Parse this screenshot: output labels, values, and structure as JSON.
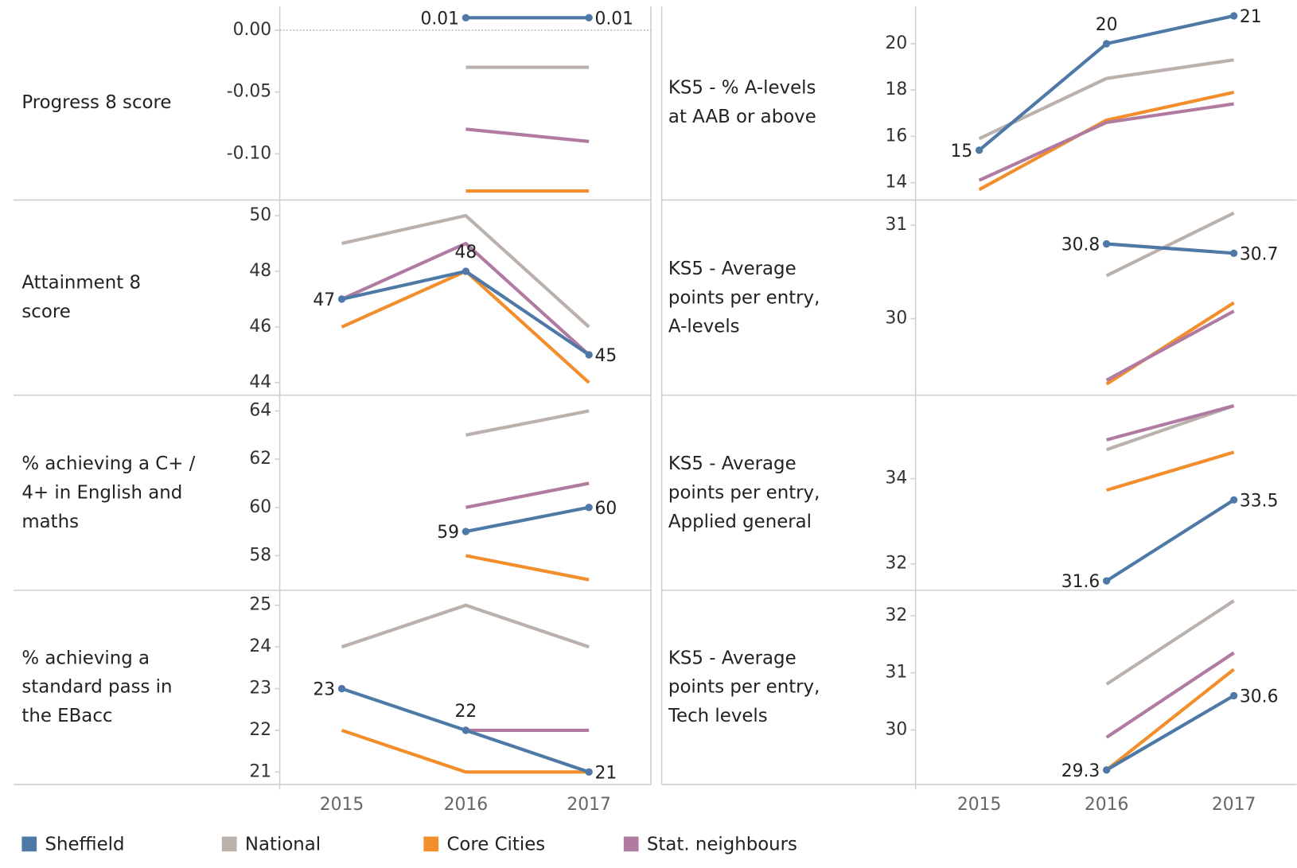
{
  "chart_data": [
    {
      "type": "line",
      "title": "Progress 8 score",
      "categories": [
        "2015",
        "2016",
        "2017"
      ],
      "ylim": [
        -0.136,
        0.019
      ],
      "yticks": [
        {
          "value": 0,
          "label": "0.00"
        },
        {
          "value": -0.05,
          "label": "-0.05"
        },
        {
          "value": -0.1,
          "label": "-0.10"
        }
      ],
      "zero_line": true,
      "series": [
        {
          "name": "Sheffield",
          "color": "#4e79a7",
          "values": [
            null,
            0.01,
            0.01
          ]
        },
        {
          "name": "National",
          "color": "#bab0ac",
          "values": [
            null,
            -0.03,
            -0.03
          ]
        },
        {
          "name": "Core Cities",
          "color": "#f28e2b",
          "values": [
            null,
            -0.13,
            -0.13
          ]
        },
        {
          "name": "Stat. neighbours",
          "color": "#b07aa1",
          "values": [
            null,
            -0.08,
            -0.09
          ]
        }
      ]
    },
    {
      "type": "line",
      "title": "Attainment 8\nscore",
      "categories": [
        "2015",
        "2016",
        "2017"
      ],
      "ylim": [
        43.58,
        50.53
      ],
      "yticks": [
        44,
        46,
        48,
        50
      ],
      "series": [
        {
          "name": "Sheffield",
          "color": "#4e79a7",
          "values": [
            47,
            48,
            45
          ]
        },
        {
          "name": "National",
          "color": "#bab0ac",
          "values": [
            49,
            50,
            46
          ]
        },
        {
          "name": "Core Cities",
          "color": "#f28e2b",
          "values": [
            46,
            48,
            44
          ]
        },
        {
          "name": "Stat. neighbours",
          "color": "#b07aa1",
          "values": [
            47,
            49,
            45
          ]
        }
      ]
    },
    {
      "type": "line",
      "title": "% achieving a C+ /\n4+ in English and\nmaths",
      "categories": [
        "2015",
        "2016",
        "2017"
      ],
      "ylim": [
        56.6,
        64.62
      ],
      "yticks": [
        58,
        60,
        62,
        64
      ],
      "series": [
        {
          "name": "Sheffield",
          "color": "#4e79a7",
          "values": [
            null,
            59,
            60
          ]
        },
        {
          "name": "National",
          "color": "#bab0ac",
          "values": [
            null,
            63,
            64
          ]
        },
        {
          "name": "Core Cities",
          "color": "#f28e2b",
          "values": [
            null,
            58,
            57
          ]
        },
        {
          "name": "Stat. neighbours",
          "color": "#b07aa1",
          "values": [
            null,
            60,
            61
          ]
        }
      ]
    },
    {
      "type": "line",
      "title": "% achieving a\nstandard pass in\nthe EBacc",
      "categories": [
        "2015",
        "2016",
        "2017"
      ],
      "ylim": [
        20.72,
        25.34
      ],
      "yticks": [
        21,
        22,
        23,
        24,
        25
      ],
      "series": [
        {
          "name": "Sheffield",
          "color": "#4e79a7",
          "values": [
            23,
            22,
            21
          ]
        },
        {
          "name": "National",
          "color": "#bab0ac",
          "values": [
            24,
            25,
            24
          ]
        },
        {
          "name": "Core Cities",
          "color": "#f28e2b",
          "values": [
            22,
            21,
            21
          ]
        },
        {
          "name": "Stat. neighbours",
          "color": "#b07aa1",
          "values": [
            null,
            22,
            22
          ]
        }
      ]
    },
    {
      "type": "line",
      "title": "KS5 - % A-levels\nat AAB or above",
      "categories": [
        "2015",
        "2016",
        "2017"
      ],
      "ylim": [
        13.32,
        21.6
      ],
      "yticks": [
        14,
        16,
        18,
        20
      ],
      "series": [
        {
          "name": "Sheffield",
          "color": "#4e79a7",
          "values": [
            15.4,
            20,
            21.2
          ],
          "value_labels": [
            "15",
            "20",
            "21"
          ]
        },
        {
          "name": "National",
          "color": "#bab0ac",
          "values": [
            15.9,
            18.5,
            19.3
          ]
        },
        {
          "name": "Core Cities",
          "color": "#f28e2b",
          "values": [
            13.7,
            16.7,
            17.9
          ]
        },
        {
          "name": "Stat. neighbours",
          "color": "#b07aa1",
          "values": [
            14.1,
            16.6,
            17.4
          ]
        }
      ]
    },
    {
      "type": "line",
      "title": "KS5 - Average\npoints per entry,\nA-levels",
      "categories": [
        "2015",
        "2016",
        "2017"
      ],
      "ylim": [
        29.19,
        31.26
      ],
      "yticks": [
        30,
        31
      ],
      "series": [
        {
          "name": "Sheffield",
          "color": "#4e79a7",
          "values": [
            null,
            30.8,
            30.7
          ]
        },
        {
          "name": "National",
          "color": "#bab0ac",
          "values": [
            null,
            30.46,
            31.13
          ]
        },
        {
          "name": "Core Cities",
          "color": "#f28e2b",
          "values": [
            null,
            29.3,
            30.17
          ]
        },
        {
          "name": "Stat. neighbours",
          "color": "#b07aa1",
          "values": [
            null,
            29.34,
            30.08
          ]
        }
      ]
    },
    {
      "type": "line",
      "title": "KS5 - Average\npoints per entry,\nApplied general",
      "categories": [
        "2015",
        "2016",
        "2017"
      ],
      "ylim": [
        31.4,
        35.94
      ],
      "yticks": [
        32,
        34
      ],
      "series": [
        {
          "name": "Sheffield",
          "color": "#4e79a7",
          "values": [
            null,
            31.6,
            33.5
          ]
        },
        {
          "name": "National",
          "color": "#bab0ac",
          "values": [
            null,
            34.68,
            35.71
          ]
        },
        {
          "name": "Core Cities",
          "color": "#f28e2b",
          "values": [
            null,
            33.73,
            34.62
          ]
        },
        {
          "name": "Stat. neighbours",
          "color": "#b07aa1",
          "values": [
            null,
            34.91,
            35.71
          ]
        }
      ]
    },
    {
      "type": "line",
      "title": "KS5 - Average\npoints per entry,\nTech levels",
      "categories": [
        "2015",
        "2016",
        "2017"
      ],
      "ylim": [
        29.06,
        32.43
      ],
      "yticks": [
        30,
        31,
        32
      ],
      "series": [
        {
          "name": "Sheffield",
          "color": "#4e79a7",
          "values": [
            null,
            29.3,
            30.6
          ]
        },
        {
          "name": "National",
          "color": "#bab0ac",
          "values": [
            null,
            30.8,
            32.26
          ]
        },
        {
          "name": "Core Cities",
          "color": "#f28e2b",
          "values": [
            null,
            29.3,
            31.06
          ]
        },
        {
          "name": "Stat. neighbours",
          "color": "#b07aa1",
          "values": [
            null,
            29.87,
            31.35
          ]
        }
      ]
    }
  ]
}
